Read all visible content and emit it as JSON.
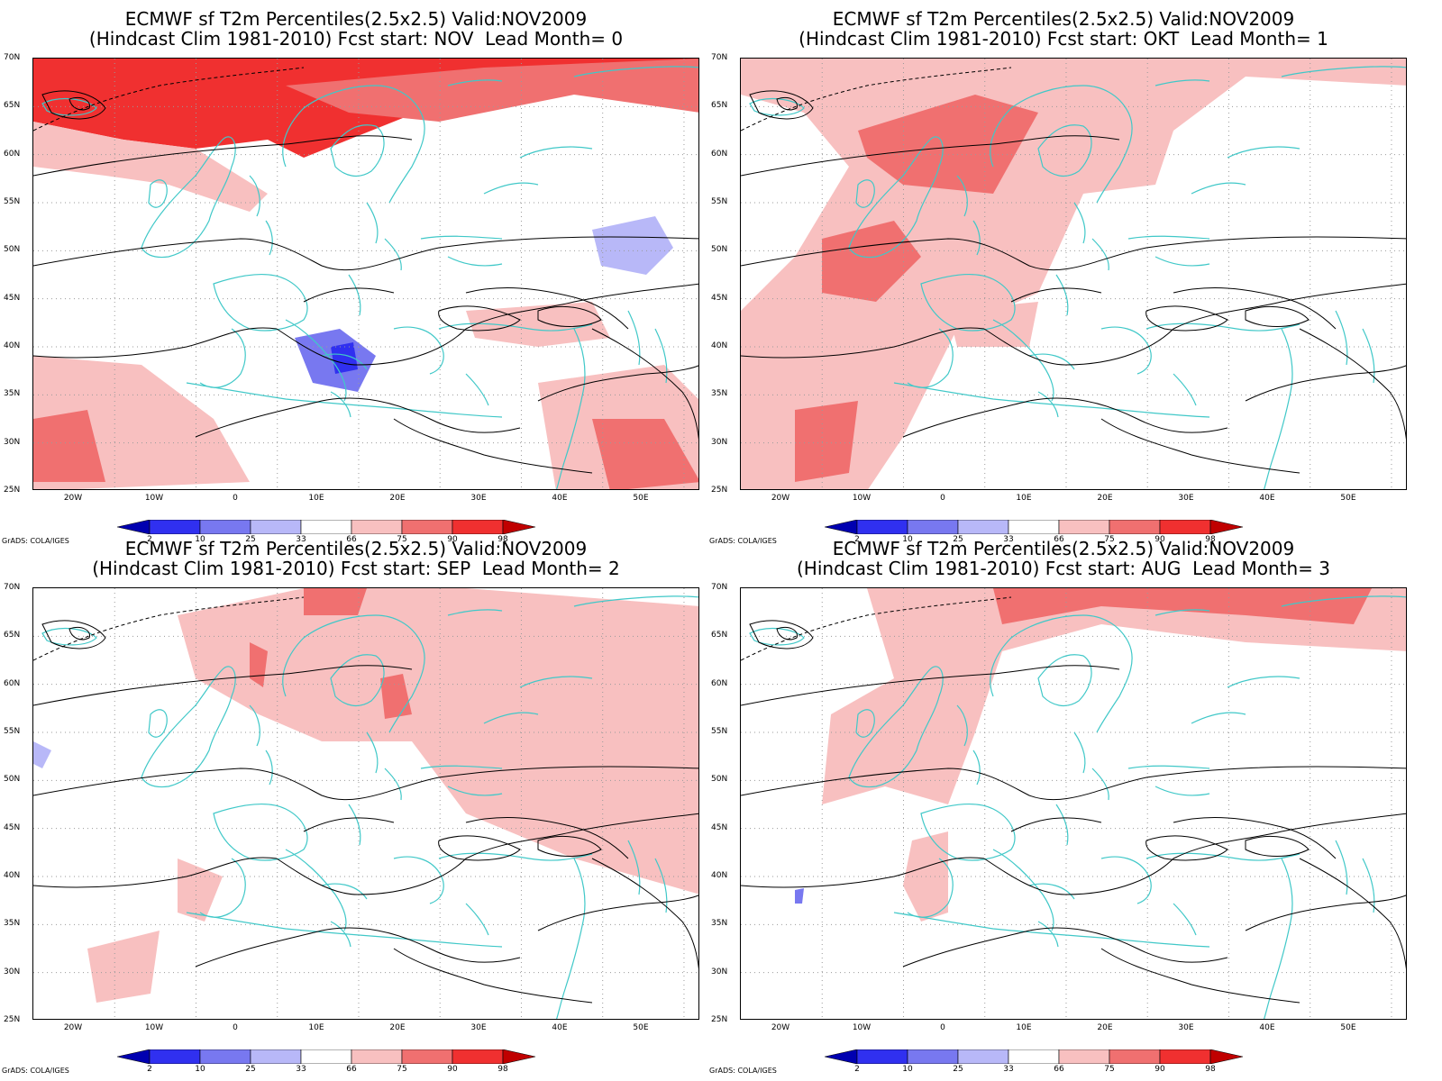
{
  "panels": [
    {
      "title_line1": "ECMWF sf T2m Percentiles(2.5x2.5) Valid:NOV2009",
      "title_line2": "(Hindcast Clim 1981-2010) Fcst start: NOV  Lead Month= 0"
    },
    {
      "title_line1": "ECMWF sf T2m Percentiles(2.5x2.5) Valid:NOV2009",
      "title_line2": "(Hindcast Clim 1981-2010) Fcst start: OKT  Lead Month= 1"
    },
    {
      "title_line1": "ECMWF sf T2m Percentiles(2.5x2.5) Valid:NOV2009",
      "title_line2": "(Hindcast Clim 1981-2010) Fcst start: SEP  Lead Month= 2"
    },
    {
      "title_line1": "ECMWF sf T2m Percentiles(2.5x2.5) Valid:NOV2009",
      "title_line2": "(Hindcast Clim 1981-2010) Fcst start: AUG  Lead Month= 3"
    }
  ],
  "lat_labels": [
    "70N",
    "65N",
    "60N",
    "55N",
    "50N",
    "45N",
    "40N",
    "35N",
    "30N",
    "25N"
  ],
  "lon_labels": [
    "20W",
    "10W",
    "0",
    "10E",
    "20E",
    "30E",
    "40E",
    "50E"
  ],
  "colorbar": {
    "labels": [
      "2",
      "10",
      "25",
      "33",
      "66",
      "75",
      "90",
      "98"
    ],
    "colors": [
      "#0000b0",
      "#3030f0",
      "#7878f0",
      "#b8b8f8",
      "#ffffff",
      "#f8c0c0",
      "#f07070",
      "#f03030",
      "#c00000"
    ]
  },
  "credit": "GrADS: COLA/IGES",
  "colors": {
    "coastline": "#40c8c8",
    "contour": "#000000",
    "frame": "#000000"
  }
}
